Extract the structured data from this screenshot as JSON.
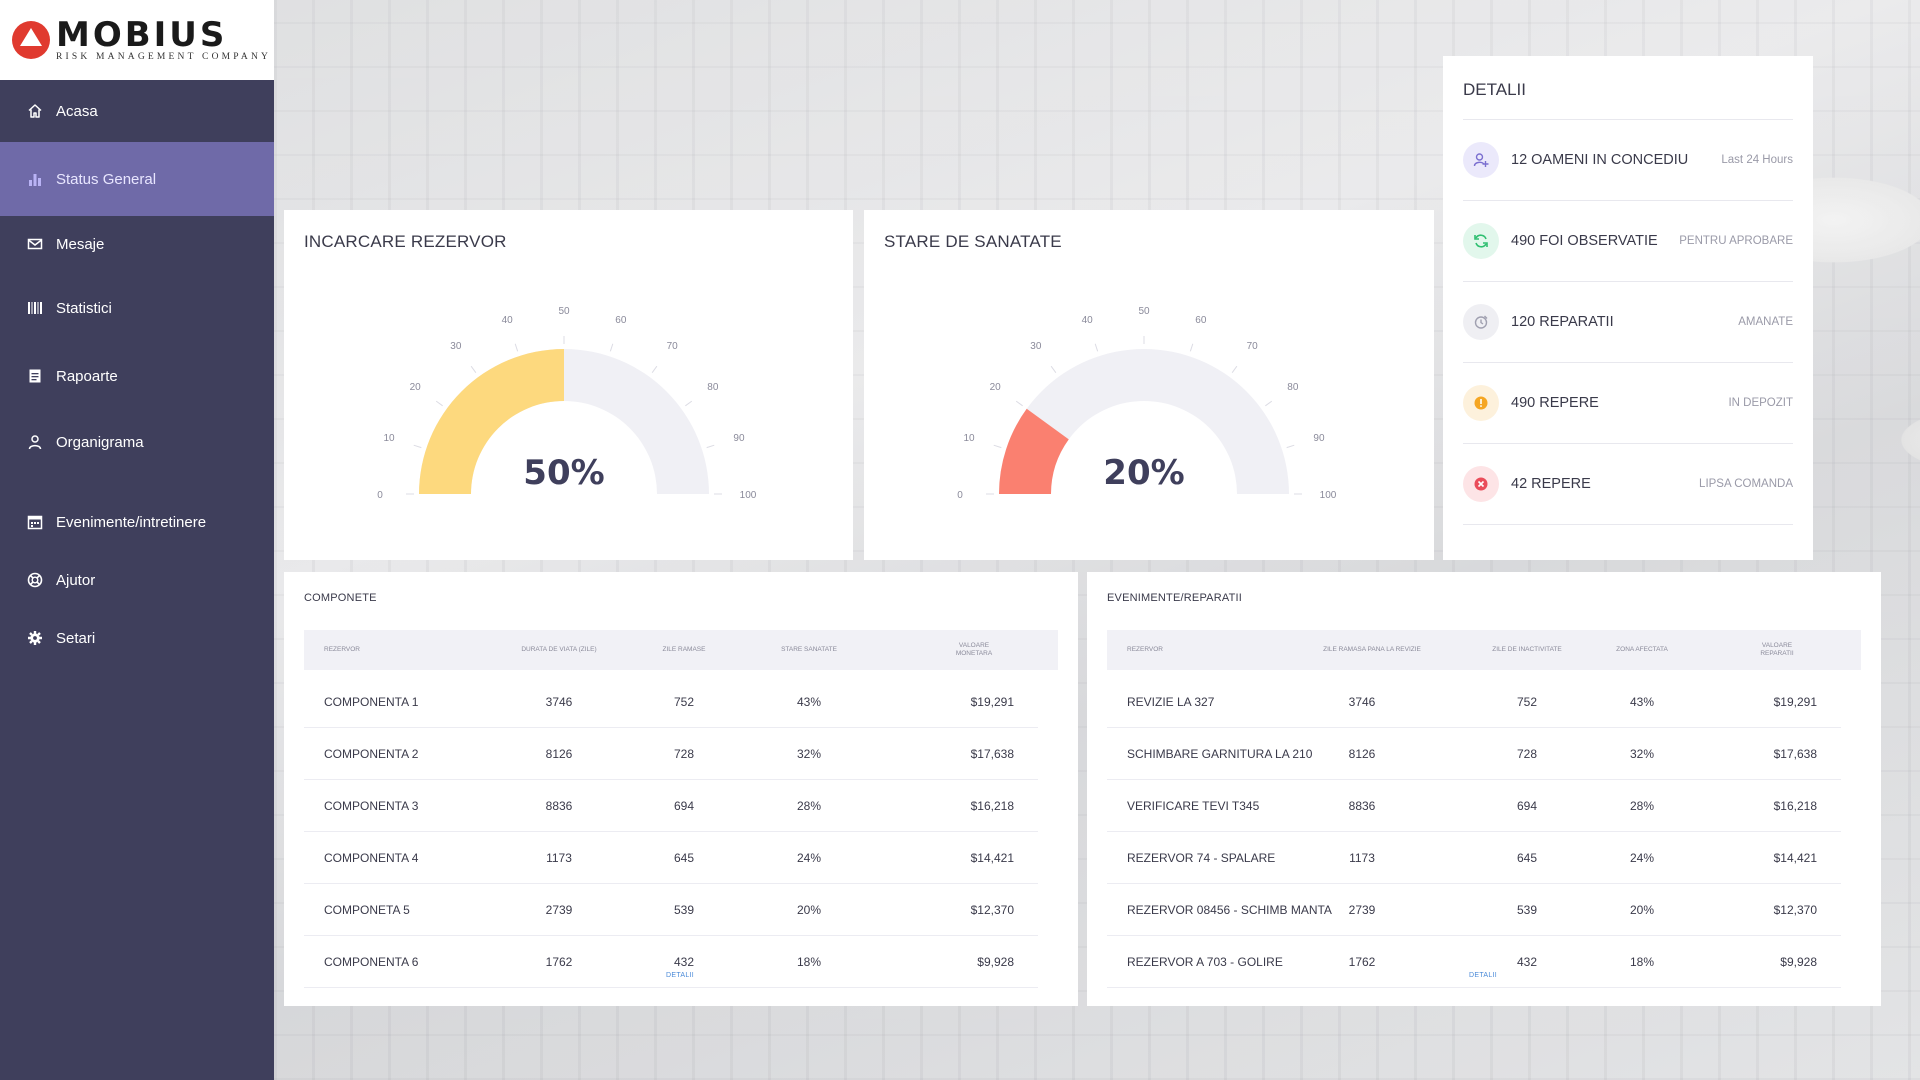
{
  "brand": {
    "name": "MOBIUS",
    "tagline": "RISK MANAGEMENT COMPANY"
  },
  "sidebar": {
    "items": [
      {
        "label": "Acasa",
        "icon": "home-icon"
      },
      {
        "label": "Status General",
        "icon": "bar-chart-icon",
        "active": true
      },
      {
        "label": "Mesaje",
        "icon": "envelope-icon"
      },
      {
        "label": "Statistici",
        "icon": "barcode-icon"
      },
      {
        "label": "Rapoarte",
        "icon": "document-icon"
      },
      {
        "label": "Organigrama",
        "icon": "user-icon"
      },
      {
        "label": "Evenimente/intretinere",
        "icon": "calendar-icon"
      },
      {
        "label": "Ajutor",
        "icon": "lifebuoy-icon"
      },
      {
        "label": "Setari",
        "icon": "gear-icon"
      }
    ],
    "colors": {
      "background": "#3f3f5c",
      "active": "#6f6aa8"
    }
  },
  "gauges": [
    {
      "title": "INCARCARE REZERVOR",
      "value": 50,
      "display": "50%",
      "color": "#fdd97e",
      "ticks": [
        "0",
        "10",
        "20",
        "30",
        "40",
        "50",
        "60",
        "70",
        "80",
        "90",
        "100"
      ]
    },
    {
      "title": "STARE DE SANATATE",
      "value": 20,
      "display": "20%",
      "color": "#fa8070",
      "ticks": [
        "0",
        "10",
        "20",
        "30",
        "40",
        "50",
        "60",
        "70",
        "80",
        "90",
        "100"
      ]
    }
  ],
  "details": {
    "title": "DETALII",
    "rows": [
      {
        "text": "12 OAMENI IN CONCEDIU",
        "meta": "Last 24 Hours",
        "icon": "user-plus-icon",
        "color": "#7b6fd0",
        "bg": "#ebe9fb"
      },
      {
        "text": "490 FOI OBSERVATIE",
        "meta": "PENTRU APROBARE",
        "icon": "refresh-icon",
        "color": "#2fbf71",
        "bg": "#e2f7ec"
      },
      {
        "text": "120 REPARATII",
        "meta": "AMANATE",
        "icon": "clock-icon",
        "color": "#a0a0b0",
        "bg": "#efeff3"
      },
      {
        "text": "490 REPERE",
        "meta": "IN DEPOZIT",
        "icon": "alert-icon",
        "color": "#f5a623",
        "bg": "#fdf1dc"
      },
      {
        "text": "42 REPERE",
        "meta": "LIPSA COMANDA",
        "icon": "close-circle-icon",
        "color": "#ea4c5a",
        "bg": "#fde4e6"
      }
    ]
  },
  "componente": {
    "title": "COMPONETE",
    "headers": [
      "REZERVOR",
      "DURATA DE VIATA (ZILE)",
      "ZILE RAMASE",
      "STARE SANATATE",
      "VALOARE MONETARA"
    ],
    "rows": [
      [
        "COMPONENTA 1",
        "3746",
        "752",
        "43%",
        "$19,291"
      ],
      [
        "COMPONENTA 2",
        "8126",
        "728",
        "32%",
        "$17,638"
      ],
      [
        "COMPONENTA 3",
        "8836",
        "694",
        "28%",
        "$16,218"
      ],
      [
        "COMPONENTA 4",
        "1173",
        "645",
        "24%",
        "$14,421"
      ],
      [
        "COMPONETA 5",
        "2739",
        "539",
        "20%",
        "$12,370"
      ],
      [
        "COMPONENTA 6",
        "1762",
        "432",
        "18%",
        "$9,928"
      ]
    ],
    "link": "DETALII"
  },
  "evenimente": {
    "title": "EVENIMENTE/REPARATII",
    "headers": [
      "REZERVOR",
      "ZILE RAMASA PANA LA REVIZIE",
      "ZILE DE INACTIVITATE",
      "ZONA AFECTATA",
      "VALOARE REPARATII"
    ],
    "rows": [
      [
        "REVIZIE LA 327",
        "3746",
        "752",
        "43%",
        "$19,291"
      ],
      [
        "SCHIMBARE GARNITURA LA 210",
        "8126",
        "728",
        "32%",
        "$17,638"
      ],
      [
        "VERIFICARE TEVI T345",
        "8836",
        "694",
        "28%",
        "$16,218"
      ],
      [
        "REZERVOR 74 - SPALARE",
        "1173",
        "645",
        "24%",
        "$14,421"
      ],
      [
        "REZERVOR 08456 - SCHIMB MANTA",
        "2739",
        "539",
        "20%",
        "$12,370"
      ],
      [
        "REZERVOR A 703 - GOLIRE",
        "1762",
        "432",
        "18%",
        "$9,928"
      ]
    ],
    "link": "DETALII"
  }
}
